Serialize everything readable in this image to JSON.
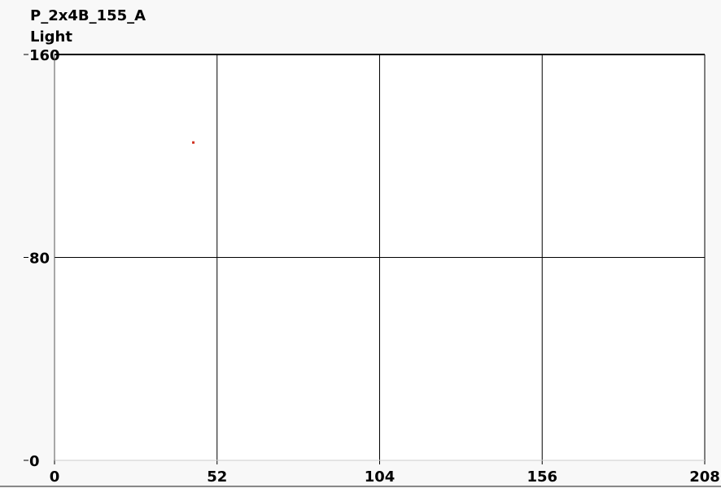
{
  "chart_data": {
    "type": "scatter",
    "title": "P_2x4B_155_A",
    "subtitle": "Light",
    "xlim": [
      0,
      208
    ],
    "ylim": [
      0,
      160
    ],
    "x_ticks": [
      "0",
      "52",
      "104",
      "156",
      "208"
    ],
    "y_ticks": [
      "0",
      "80",
      "160"
    ],
    "grid": true,
    "series": [
      {
        "color": "#d03020",
        "points": [
          {
            "x": 44.4,
            "y": 125.3
          }
        ]
      }
    ]
  }
}
